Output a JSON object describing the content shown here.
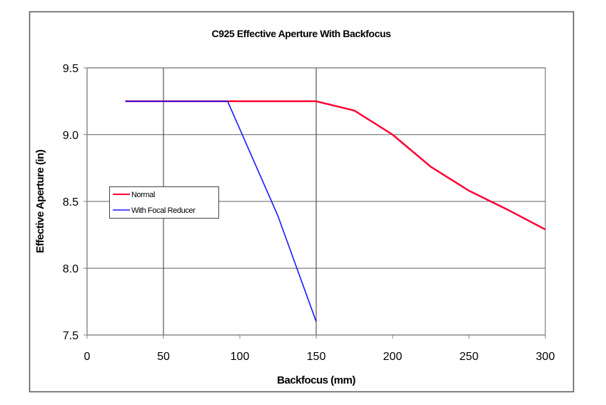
{
  "chart_data": {
    "type": "line",
    "title": "C925 Effective Aperture With Backfocus",
    "xlabel": "Backfocus (mm)",
    "ylabel": "Effective Aperture (in)",
    "xlim": [
      0,
      300
    ],
    "ylim": [
      7.5,
      9.5
    ],
    "xticks": [
      0,
      50,
      100,
      150,
      200,
      250,
      300
    ],
    "xtick_labels": [
      "0",
      "50",
      "100",
      "150",
      "200",
      "250",
      "300"
    ],
    "yticks": [
      7.5,
      8.0,
      8.5,
      9.0,
      9.5
    ],
    "ytick_labels": [
      "7.5",
      "8.0",
      "8.5",
      "9.0",
      "9.5"
    ],
    "x_gridlines": [
      50,
      150
    ],
    "y_gridlines": [
      8.0,
      8.5,
      9.0,
      9.5
    ],
    "grid": true,
    "legend_position": "left-middle",
    "series": [
      {
        "name": "Normal",
        "color": "#ff0033",
        "x": [
          25,
          50,
          75,
          100,
          112.5,
          150,
          175,
          200,
          225,
          250,
          275,
          300
        ],
        "y": [
          9.25,
          9.25,
          9.25,
          9.25,
          9.25,
          9.25,
          9.18,
          9.0,
          8.76,
          8.58,
          8.44,
          8.29
        ]
      },
      {
        "name": "With Focal Reducer",
        "color": "#1a1aff",
        "x": [
          25,
          50,
          75,
          92,
          125,
          150
        ],
        "y": [
          9.25,
          9.25,
          9.25,
          9.25,
          8.39,
          7.6
        ]
      }
    ]
  }
}
